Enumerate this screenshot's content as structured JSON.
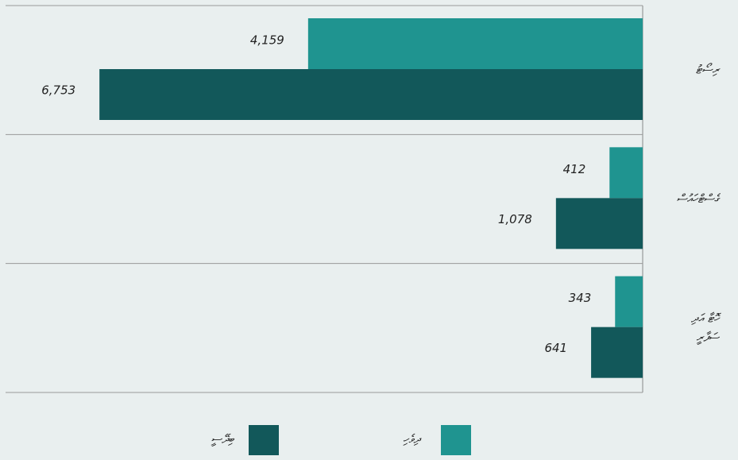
{
  "chart_data": {
    "type": "barh",
    "categories": [
      [
        "ރިސޯޓު"
      ],
      [
        "ގެސްޓްހައުސް"
      ],
      [
        "ހޮޓާ އަދި",
        "ސަފާރީ"
      ]
    ],
    "series": [
      {
        "name": "ދިވެހި",
        "color": "#1f9490",
        "values": [
          4159,
          412,
          343
        ],
        "value_labels": [
          "4,159",
          "412",
          "343"
        ]
      },
      {
        "name": "ބިދޭސީ",
        "color": "#12585a",
        "values": [
          6753,
          1078,
          641
        ],
        "value_labels": [
          "6,753",
          "1,078",
          "641"
        ]
      }
    ],
    "xlim": [
      0,
      7920
    ],
    "reversed": true
  }
}
